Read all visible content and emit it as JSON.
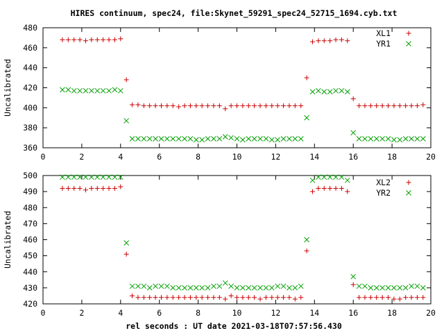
{
  "title": "HIRES continuum, spec24, file:Skynet_59291_spec24_52715_1694.cyb.txt",
  "xlabel": "rel seconds : UT date 2021-03-18T07:57:56.430",
  "chart_data": [
    {
      "type": "scatter",
      "xlabel": "",
      "ylabel": "Uncalibrated",
      "xlim": [
        0,
        20
      ],
      "ylim": [
        360,
        480
      ],
      "x_ticks": [
        0,
        2,
        4,
        6,
        8,
        10,
        12,
        14,
        16,
        18,
        20
      ],
      "y_ticks": [
        360,
        380,
        400,
        420,
        440,
        460,
        480
      ],
      "legend_position": "top-right",
      "series": [
        {
          "name": "XL1",
          "marker": "plus",
          "color": "#cc0000",
          "x": [
            1.0,
            1.3,
            1.6,
            1.9,
            2.2,
            2.5,
            2.8,
            3.1,
            3.4,
            3.7,
            4.0,
            4.3,
            4.6,
            4.9,
            5.2,
            5.5,
            5.8,
            6.1,
            6.4,
            6.7,
            7.0,
            7.3,
            7.6,
            7.9,
            8.2,
            8.5,
            8.8,
            9.1,
            9.4,
            9.7,
            10.0,
            10.3,
            10.6,
            10.9,
            11.2,
            11.5,
            11.8,
            12.1,
            12.4,
            12.7,
            13.0,
            13.3,
            13.6,
            13.9,
            14.2,
            14.5,
            14.8,
            15.1,
            15.4,
            15.7,
            16.0,
            16.3,
            16.6,
            16.9,
            17.2,
            17.5,
            17.8,
            18.1,
            18.4,
            18.7,
            19.0,
            19.3,
            19.6
          ],
          "y": [
            468,
            468,
            468,
            468,
            467,
            468,
            468,
            468,
            468,
            468,
            469,
            428,
            403,
            403,
            402,
            402,
            402,
            402,
            402,
            402,
            401,
            402,
            402,
            402,
            402,
            402,
            402,
            402,
            399,
            402,
            402,
            402,
            402,
            402,
            402,
            402,
            402,
            402,
            402,
            402,
            402,
            402,
            430,
            466,
            467,
            467,
            467,
            468,
            468,
            467,
            409,
            402,
            402,
            402,
            402,
            402,
            402,
            402,
            402,
            402,
            402,
            402,
            403
          ],
          "y_fmt": "approx"
        },
        {
          "name": "YR1",
          "marker": "cross",
          "color": "#00a000",
          "x": [
            1.0,
            1.3,
            1.6,
            1.9,
            2.2,
            2.5,
            2.8,
            3.1,
            3.4,
            3.7,
            4.0,
            4.3,
            4.6,
            4.9,
            5.2,
            5.5,
            5.8,
            6.1,
            6.4,
            6.7,
            7.0,
            7.3,
            7.6,
            7.9,
            8.2,
            8.5,
            8.8,
            9.1,
            9.4,
            9.7,
            10.0,
            10.3,
            10.6,
            10.9,
            11.2,
            11.5,
            11.8,
            12.1,
            12.4,
            12.7,
            13.0,
            13.3,
            13.6,
            13.9,
            14.2,
            14.5,
            14.8,
            15.1,
            15.4,
            15.7,
            16.0,
            16.3,
            16.6,
            16.9,
            17.2,
            17.5,
            17.8,
            18.1,
            18.4,
            18.7,
            19.0,
            19.3,
            19.6
          ],
          "y": [
            418,
            418,
            417,
            417,
            417,
            417,
            417,
            417,
            417,
            418,
            417,
            387,
            369,
            369,
            369,
            369,
            369,
            369,
            369,
            369,
            369,
            369,
            369,
            368,
            368,
            369,
            369,
            369,
            371,
            370,
            369,
            368,
            369,
            369,
            369,
            369,
            368,
            368,
            369,
            369,
            369,
            369,
            390,
            416,
            417,
            416,
            416,
            417,
            417,
            416,
            375,
            369,
            369,
            369,
            369,
            369,
            369,
            368,
            368,
            369,
            369,
            369,
            369
          ]
        }
      ]
    },
    {
      "type": "scatter",
      "xlabel": "rel seconds : UT date 2021-03-18T07:57:56.430",
      "ylabel": "Uncalibrated",
      "xlim": [
        0,
        20
      ],
      "ylim": [
        420,
        500
      ],
      "x_ticks": [
        0,
        2,
        4,
        6,
        8,
        10,
        12,
        14,
        16,
        18,
        20
      ],
      "y_ticks": [
        420,
        430,
        440,
        450,
        460,
        470,
        480,
        490,
        500
      ],
      "legend_position": "top-right",
      "series": [
        {
          "name": "XL2",
          "marker": "plus",
          "color": "#cc0000",
          "x": [
            1.0,
            1.3,
            1.6,
            1.9,
            2.2,
            2.5,
            2.8,
            3.1,
            3.4,
            3.7,
            4.0,
            4.3,
            4.6,
            4.9,
            5.2,
            5.5,
            5.8,
            6.1,
            6.4,
            6.7,
            7.0,
            7.3,
            7.6,
            7.9,
            8.2,
            8.5,
            8.8,
            9.1,
            9.4,
            9.7,
            10.0,
            10.3,
            10.6,
            10.9,
            11.2,
            11.5,
            11.8,
            12.1,
            12.4,
            12.7,
            13.0,
            13.3,
            13.6,
            13.9,
            14.2,
            14.5,
            14.8,
            15.1,
            15.4,
            15.7,
            16.0,
            16.3,
            16.6,
            16.9,
            17.2,
            17.5,
            17.8,
            18.1,
            18.4,
            18.7,
            19.0,
            19.3,
            19.6
          ],
          "y": [
            492,
            492,
            492,
            492,
            491,
            492,
            492,
            492,
            492,
            492,
            493,
            451,
            425,
            424,
            424,
            424,
            424,
            424,
            424,
            424,
            424,
            424,
            424,
            424,
            424,
            424,
            424,
            424,
            423,
            425,
            424,
            424,
            424,
            424,
            423,
            424,
            424,
            424,
            424,
            424,
            423,
            424,
            453,
            490,
            492,
            492,
            492,
            492,
            492,
            490,
            432,
            424,
            424,
            424,
            424,
            424,
            424,
            423,
            423,
            424,
            424,
            424,
            424
          ]
        },
        {
          "name": "YR2",
          "marker": "cross",
          "color": "#00a000",
          "x": [
            1.0,
            1.3,
            1.6,
            1.9,
            2.2,
            2.5,
            2.8,
            3.1,
            3.4,
            3.7,
            4.0,
            4.3,
            4.6,
            4.9,
            5.2,
            5.5,
            5.8,
            6.1,
            6.4,
            6.7,
            7.0,
            7.3,
            7.6,
            7.9,
            8.2,
            8.5,
            8.8,
            9.1,
            9.4,
            9.7,
            10.0,
            10.3,
            10.6,
            10.9,
            11.2,
            11.5,
            11.8,
            12.1,
            12.4,
            12.7,
            13.0,
            13.3,
            13.6,
            13.9,
            14.2,
            14.5,
            14.8,
            15.1,
            15.4,
            15.7,
            16.0,
            16.3,
            16.6,
            16.9,
            17.2,
            17.5,
            17.8,
            18.1,
            18.4,
            18.7,
            19.0,
            19.3,
            19.6
          ],
          "y": [
            499,
            499,
            499,
            499,
            499,
            499,
            499,
            499,
            499,
            499,
            499,
            458,
            431,
            431,
            431,
            430,
            431,
            431,
            431,
            430,
            430,
            430,
            430,
            430,
            430,
            430,
            431,
            431,
            433,
            431,
            430,
            430,
            430,
            430,
            430,
            430,
            430,
            431,
            431,
            430,
            430,
            431,
            460,
            497,
            499,
            499,
            499,
            499,
            499,
            497,
            437,
            431,
            431,
            430,
            430,
            430,
            430,
            430,
            430,
            430,
            431,
            431,
            430
          ]
        }
      ]
    }
  ]
}
